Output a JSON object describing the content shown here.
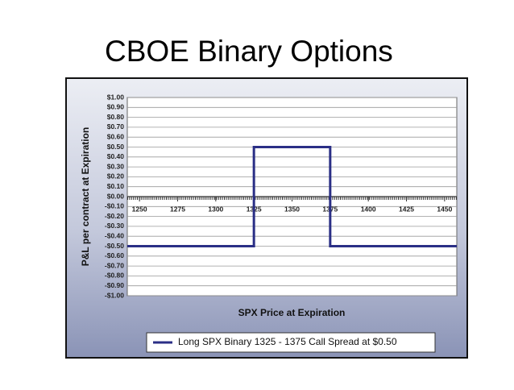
{
  "slide_title": "CBOE Binary Options",
  "chart_data": {
    "type": "line",
    "y_label": "P&L per contract at Expiration",
    "x_label": "SPX Price at Expiration",
    "xlim": [
      1242,
      1458
    ],
    "xticks": [
      1250,
      1275,
      1300,
      1325,
      1350,
      1375,
      1400,
      1425,
      1450
    ],
    "ylim": [
      -1,
      1
    ],
    "yticks": [
      {
        "value": 1,
        "label": "$1.00"
      },
      {
        "value": 0.9,
        "label": "$0.90"
      },
      {
        "value": 0.8,
        "label": "$0.80"
      },
      {
        "value": 0.7,
        "label": "$0.70"
      },
      {
        "value": 0.6,
        "label": "$0.60"
      },
      {
        "value": 0.5,
        "label": "$0.50"
      },
      {
        "value": 0.4,
        "label": "$0.40"
      },
      {
        "value": 0.3,
        "label": "$0.30"
      },
      {
        "value": 0.2,
        "label": "$0.20"
      },
      {
        "value": 0.1,
        "label": "$0.10"
      },
      {
        "value": 0,
        "label": "$0.00"
      },
      {
        "value": -0.1,
        "label": "-$0.10"
      },
      {
        "value": -0.2,
        "label": "-$0.20"
      },
      {
        "value": -0.3,
        "label": "-$0.30"
      },
      {
        "value": -0.4,
        "label": "-$0.40"
      },
      {
        "value": -0.5,
        "label": "-$0.50"
      },
      {
        "value": -0.6,
        "label": "-$0.60"
      },
      {
        "value": -0.7,
        "label": "-$0.70"
      },
      {
        "value": -0.8,
        "label": "-$0.80"
      },
      {
        "value": -0.9,
        "label": "-$0.90"
      },
      {
        "value": -1,
        "label": "-$1.00"
      }
    ],
    "grid": true,
    "series": [
      {
        "name": "Long SPX Binary 1325 - 1375 Call Spread at $0.50",
        "color": "#2b2f86",
        "x": [
          1242,
          1325,
          1325,
          1375,
          1375,
          1458
        ],
        "values": [
          -0.5,
          -0.5,
          0.5,
          0.5,
          -0.5,
          -0.5
        ]
      }
    ]
  }
}
